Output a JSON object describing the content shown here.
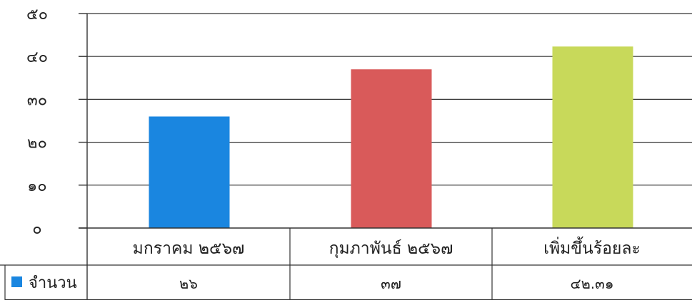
{
  "chart_data": {
    "type": "bar",
    "title": "",
    "xlabel": "",
    "ylabel": "",
    "ylim": [
      0,
      50
    ],
    "y_ticks": [
      0,
      10,
      20,
      30,
      40,
      50
    ],
    "y_tick_labels": [
      "๐",
      "๑๐",
      "๒๐",
      "๓๐",
      "๔๐",
      "๕๐"
    ],
    "grid": true,
    "categories": [
      "มกราคม ๒๕๖๗",
      "กุมภาพันธ์ ๒๕๖๗",
      "เพิ่มขึ้นร้อยละ"
    ],
    "values": [
      26,
      37,
      42.31
    ],
    "value_labels": [
      "๒๖",
      "๓๗",
      "๔๒.๓๑"
    ],
    "bar_colors": [
      "#1a86e0",
      "#d95a5a",
      "#c8d95a"
    ],
    "series": [
      {
        "name": "จำนวน",
        "values": [
          26,
          37,
          42.31
        ],
        "color": "#1a86e0"
      }
    ],
    "legend_placement": "bottom-left (data table)"
  }
}
